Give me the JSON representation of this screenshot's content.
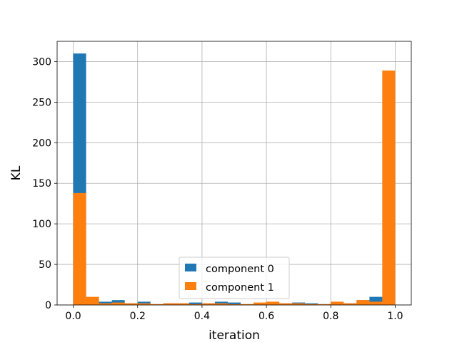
{
  "chart_data": {
    "type": "bar",
    "subtype": "overlaid-histogram",
    "title": "",
    "xlabel": "iteration",
    "ylabel": "KL",
    "xlim": [
      -0.05,
      1.05
    ],
    "ylim": [
      0,
      325
    ],
    "xticks": [
      "0.0",
      "0.2",
      "0.4",
      "0.6",
      "0.8",
      "1.0"
    ],
    "yticks": [
      "0",
      "50",
      "100",
      "150",
      "200",
      "250",
      "300"
    ],
    "grid": true,
    "legend_position": "bottom-center",
    "bin_width": 0.04,
    "bin_starts": [
      0.0,
      0.04,
      0.08,
      0.12,
      0.16,
      0.2,
      0.24,
      0.28,
      0.32,
      0.36,
      0.4,
      0.44,
      0.48,
      0.52,
      0.56,
      0.6,
      0.64,
      0.68,
      0.72,
      0.76,
      0.8,
      0.84,
      0.88,
      0.92,
      0.96
    ],
    "series": [
      {
        "name": "component 0",
        "color": "#1f77b4",
        "values": [
          310,
          6,
          4,
          6,
          2,
          4,
          1,
          2,
          2,
          3,
          2,
          4,
          3,
          1,
          2,
          3,
          2,
          3,
          2,
          1,
          2,
          2,
          6,
          10,
          289
        ]
      },
      {
        "name": "component 1",
        "color": "#ff7f0e",
        "values": [
          138,
          10,
          2,
          3,
          2,
          2,
          1,
          2,
          2,
          1,
          2,
          2,
          1,
          1,
          3,
          4,
          2,
          2,
          1,
          1,
          4,
          2,
          6,
          4,
          289
        ]
      }
    ]
  }
}
